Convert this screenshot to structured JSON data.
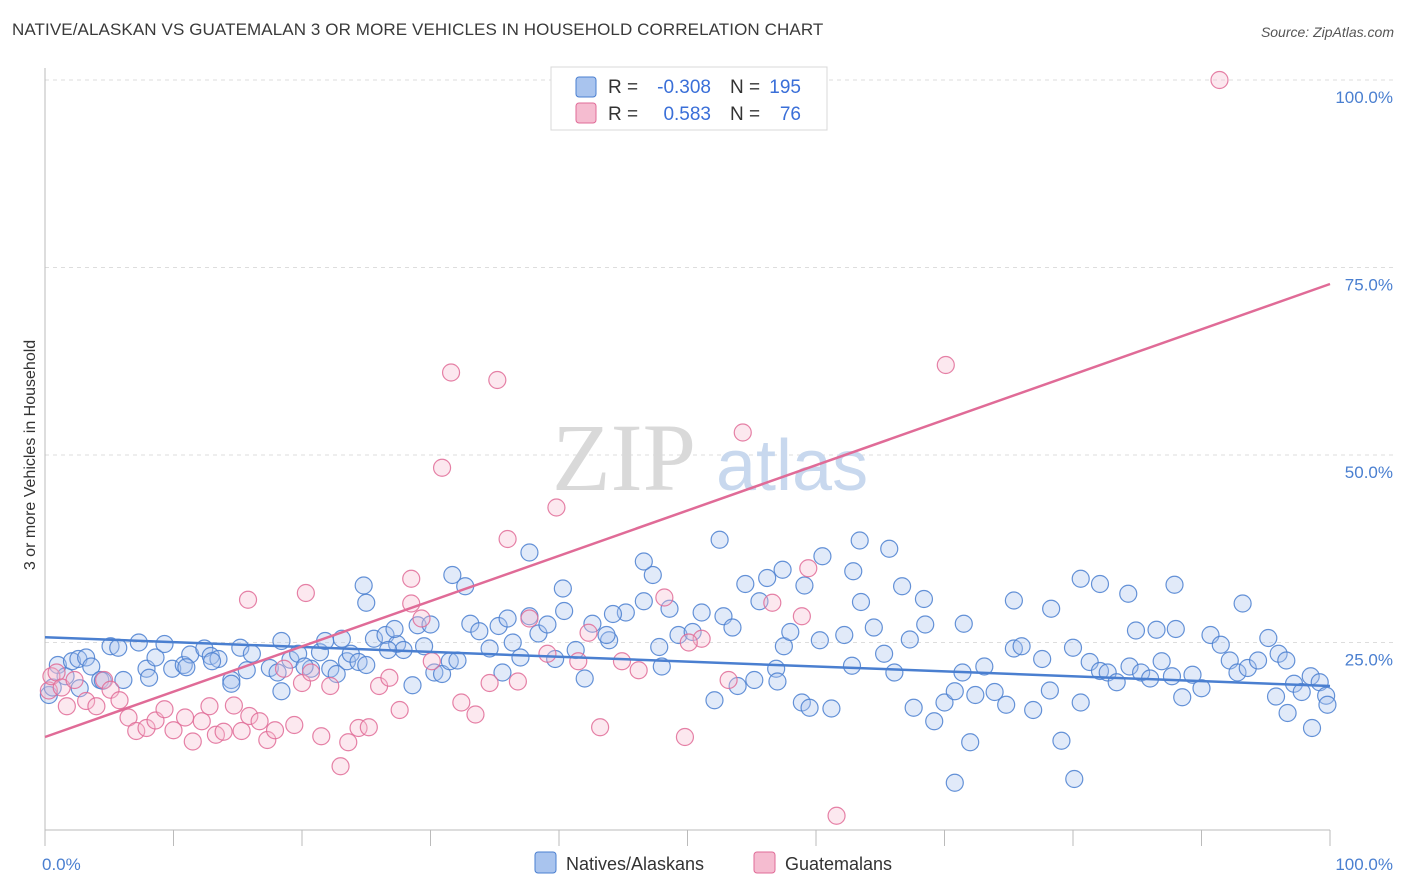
{
  "title": "NATIVE/ALASKAN VS GUATEMALAN 3 OR MORE VEHICLES IN HOUSEHOLD CORRELATION CHART",
  "source": "Source: ZipAtlas.com",
  "watermark": {
    "zip": "ZIP",
    "atlas": "atlas"
  },
  "colors": {
    "blue": "#4a7fd0",
    "blue_fill": "#a9c4ee",
    "pink": "#e06b97",
    "pink_fill": "#f5bcd0",
    "grid": "#dddddd"
  },
  "legend": {
    "rows": [
      {
        "r_label": "R =",
        "r_value": "-0.308",
        "n_label": "N =",
        "n_value": "195"
      },
      {
        "r_label": "R =",
        "r_value": "0.583",
        "n_label": "N =",
        "n_value": "76"
      }
    ],
    "bottom": [
      "Natives/Alaskans",
      "Guatemalans"
    ]
  },
  "chart_data": {
    "type": "scatter",
    "ylabel": "3 or more Vehicles in Household",
    "x_tick_labels": [
      "0.0%",
      "100.0%"
    ],
    "y_tick_labels": [
      "25.0%",
      "50.0%",
      "75.0%",
      "100.0%"
    ],
    "xlim": [
      0,
      100
    ],
    "ylim": [
      0,
      100
    ],
    "grid": true,
    "legend_position": "top-center",
    "series": [
      {
        "name": "Natives/Alaskans",
        "color": "#4a7fd0",
        "trend": {
          "x": [
            0,
            100
          ],
          "y": [
            25.7,
            19.2
          ]
        },
        "points": [
          [
            0.3,
            18
          ],
          [
            0.6,
            19
          ],
          [
            1,
            22
          ],
          [
            1.6,
            20.5
          ],
          [
            2.1,
            22.5
          ],
          [
            2.6,
            22.8
          ],
          [
            3.2,
            23
          ],
          [
            3.6,
            21.8
          ],
          [
            4.3,
            20
          ],
          [
            5.1,
            24.5
          ],
          [
            5.7,
            24.3
          ],
          [
            6.1,
            20
          ],
          [
            7.3,
            25
          ],
          [
            7.9,
            21.5
          ],
          [
            8.6,
            23
          ],
          [
            9.3,
            24.8
          ],
          [
            9.9,
            21.5
          ],
          [
            10.8,
            22
          ],
          [
            11.3,
            23.4
          ],
          [
            12.4,
            24.2
          ],
          [
            12.9,
            23.2
          ],
          [
            13.5,
            22.8
          ],
          [
            14.5,
            20
          ],
          [
            15.2,
            24.3
          ],
          [
            15.7,
            21.3
          ],
          [
            16.1,
            23.5
          ],
          [
            17.5,
            21.6
          ],
          [
            18.1,
            21
          ],
          [
            18.4,
            25.2
          ],
          [
            19.1,
            22.7
          ],
          [
            19.7,
            23.5
          ],
          [
            20.7,
            21.5
          ],
          [
            21.4,
            23.7
          ],
          [
            21.8,
            25.2
          ],
          [
            22.2,
            21.5
          ],
          [
            22.7,
            20.8
          ],
          [
            23.5,
            22.5
          ],
          [
            23.8,
            23.5
          ],
          [
            24.4,
            22.4
          ],
          [
            25,
            22
          ],
          [
            25,
            30.3
          ],
          [
            25.6,
            25.5
          ],
          [
            26.5,
            26
          ],
          [
            27.4,
            24.8
          ],
          [
            27.9,
            24
          ],
          [
            29,
            27.3
          ],
          [
            29.5,
            24.5
          ],
          [
            30.3,
            21
          ],
          [
            30.9,
            20.8
          ],
          [
            31.5,
            22.5
          ],
          [
            32.1,
            22.6
          ],
          [
            33.1,
            27.5
          ],
          [
            33.8,
            26.5
          ],
          [
            34.6,
            24.2
          ],
          [
            35.3,
            27.2
          ],
          [
            36.4,
            25
          ],
          [
            37,
            23
          ],
          [
            37.7,
            28.5
          ],
          [
            38.4,
            26.2
          ],
          [
            39.1,
            27.4
          ],
          [
            39.7,
            22.8
          ],
          [
            40.4,
            29.2
          ],
          [
            41.3,
            24
          ],
          [
            42,
            20.2
          ],
          [
            42.6,
            27.5
          ],
          [
            43.9,
            25.3
          ],
          [
            45.2,
            29
          ],
          [
            46.6,
            30.5
          ],
          [
            47.3,
            34
          ],
          [
            47.8,
            24.4
          ],
          [
            48.6,
            29.5
          ],
          [
            49.3,
            26
          ],
          [
            50.4,
            26.4
          ],
          [
            51.1,
            29
          ],
          [
            52.8,
            28.5
          ],
          [
            53.9,
            19.2
          ],
          [
            54.5,
            32.8
          ],
          [
            55.6,
            30.5
          ],
          [
            56.2,
            33.6
          ],
          [
            56.9,
            21.5
          ],
          [
            57.5,
            24.5
          ],
          [
            58,
            26.4
          ],
          [
            58.9,
            17
          ],
          [
            59.5,
            16.3
          ],
          [
            60.3,
            25.3
          ],
          [
            61.2,
            16.2
          ],
          [
            62.2,
            26
          ],
          [
            62.8,
            21.9
          ],
          [
            63.5,
            30.4
          ],
          [
            64.5,
            27
          ],
          [
            65.3,
            23.5
          ],
          [
            66.1,
            21
          ],
          [
            66.7,
            32.5
          ],
          [
            67.6,
            16.3
          ],
          [
            68.5,
            27.4
          ],
          [
            69.2,
            14.5
          ],
          [
            70,
            17
          ],
          [
            70.8,
            18.5
          ],
          [
            71.4,
            21
          ],
          [
            72,
            11.7
          ],
          [
            72.4,
            18
          ],
          [
            73.1,
            21.8
          ],
          [
            73.9,
            18.4
          ],
          [
            74.8,
            16.7
          ],
          [
            75.4,
            24.2
          ],
          [
            76,
            24.5
          ],
          [
            76.9,
            16
          ],
          [
            77.6,
            22.8
          ],
          [
            78.2,
            18.6
          ],
          [
            79.1,
            11.9
          ],
          [
            80,
            24.3
          ],
          [
            80.6,
            17
          ],
          [
            81.3,
            22.4
          ],
          [
            82.1,
            21.2
          ],
          [
            82.7,
            21
          ],
          [
            83.4,
            19.7
          ],
          [
            84.4,
            21.8
          ],
          [
            85.3,
            21
          ],
          [
            86,
            20.2
          ],
          [
            86.9,
            22.5
          ],
          [
            87.7,
            20.5
          ],
          [
            88.5,
            17.7
          ],
          [
            89.3,
            20.7
          ],
          [
            90,
            18.9
          ],
          [
            90.7,
            26
          ],
          [
            91.5,
            24.7
          ],
          [
            92.2,
            22.6
          ],
          [
            92.8,
            21
          ],
          [
            93.6,
            21.6
          ],
          [
            94.4,
            22.6
          ],
          [
            95.2,
            25.6
          ],
          [
            96,
            23.5
          ],
          [
            96.6,
            22.6
          ],
          [
            97.2,
            19.5
          ],
          [
            97.8,
            18.4
          ],
          [
            98.5,
            20.5
          ],
          [
            99.2,
            19.7
          ],
          [
            99.7,
            17.9
          ],
          [
            13,
            22.5
          ],
          [
            14.5,
            19.5
          ],
          [
            35.6,
            21
          ],
          [
            60.5,
            36.5
          ],
          [
            48,
            21.8
          ],
          [
            67.3,
            25.4
          ],
          [
            82.1,
            32.8
          ],
          [
            84.3,
            31.5
          ],
          [
            86.5,
            26.7
          ],
          [
            87.9,
            32.7
          ],
          [
            71.5,
            27.5
          ],
          [
            59.1,
            32.6
          ],
          [
            57.4,
            34.7
          ],
          [
            53.5,
            27
          ],
          [
            44.2,
            28.8
          ],
          [
            40.3,
            32.2
          ],
          [
            27.2,
            26.8
          ],
          [
            20.2,
            21.8
          ],
          [
            8.1,
            20.3
          ],
          [
            4.5,
            19.9
          ],
          [
            2.7,
            18.9
          ],
          [
            32.7,
            32.5
          ],
          [
            30,
            27.4
          ],
          [
            23.1,
            25.5
          ],
          [
            46.6,
            35.8
          ],
          [
            52.5,
            38.7
          ],
          [
            62.9,
            34.5
          ],
          [
            63.4,
            38.6
          ],
          [
            65.7,
            37.5
          ],
          [
            68.4,
            30.8
          ],
          [
            75.4,
            30.6
          ],
          [
            78.3,
            29.5
          ],
          [
            80.6,
            33.5
          ],
          [
            84.9,
            26.6
          ],
          [
            88,
            26.8
          ],
          [
            93.2,
            30.2
          ],
          [
            95.8,
            17.8
          ],
          [
            96.7,
            15.6
          ],
          [
            98.6,
            13.6
          ],
          [
            99.8,
            16.7
          ],
          [
            80.1,
            6.8
          ],
          [
            70.8,
            6.3
          ],
          [
            52.1,
            17.3
          ],
          [
            55.2,
            20
          ],
          [
            57,
            19.8
          ],
          [
            43.7,
            26
          ],
          [
            36,
            28.2
          ],
          [
            28.6,
            19.3
          ],
          [
            18.4,
            18.5
          ],
          [
            11,
            21.7
          ],
          [
            26.7,
            24
          ],
          [
            24.8,
            32.6
          ],
          [
            31.7,
            34
          ],
          [
            37.7,
            37
          ]
        ]
      },
      {
        "name": "Guatemalans",
        "color": "#e06b97",
        "trend": {
          "x": [
            0,
            100
          ],
          "y": [
            12.4,
            72.8
          ]
        },
        "points": [
          [
            0.3,
            18.6
          ],
          [
            0.5,
            20.5
          ],
          [
            0.9,
            21
          ],
          [
            1.3,
            19
          ],
          [
            1.7,
            16.5
          ],
          [
            2.3,
            20
          ],
          [
            3.2,
            17.2
          ],
          [
            4,
            16.5
          ],
          [
            4.6,
            20
          ],
          [
            5.1,
            18.7
          ],
          [
            5.8,
            17.3
          ],
          [
            6.5,
            15
          ],
          [
            7.1,
            13.2
          ],
          [
            7.9,
            13.6
          ],
          [
            8.6,
            14.6
          ],
          [
            9.3,
            16.1
          ],
          [
            10,
            13.3
          ],
          [
            10.9,
            15
          ],
          [
            11.5,
            11.8
          ],
          [
            12.2,
            14.5
          ],
          [
            12.8,
            16.5
          ],
          [
            13.3,
            12.7
          ],
          [
            13.9,
            13.1
          ],
          [
            14.7,
            16.6
          ],
          [
            15.3,
            13.2
          ],
          [
            15.9,
            15.2
          ],
          [
            16.7,
            14.5
          ],
          [
            17.3,
            12
          ],
          [
            17.9,
            13.3
          ],
          [
            18.6,
            21.5
          ],
          [
            19.4,
            14
          ],
          [
            20,
            19.6
          ],
          [
            20.7,
            21
          ],
          [
            21.5,
            12.5
          ],
          [
            22.2,
            19.2
          ],
          [
            23,
            8.5
          ],
          [
            23.6,
            11.7
          ],
          [
            24.4,
            13.6
          ],
          [
            25.2,
            13.7
          ],
          [
            26,
            19.2
          ],
          [
            26.8,
            20.3
          ],
          [
            27.6,
            16
          ],
          [
            28.5,
            33.5
          ],
          [
            29.3,
            28.2
          ],
          [
            30.1,
            22.5
          ],
          [
            30.9,
            48.3
          ],
          [
            31.6,
            61
          ],
          [
            32.4,
            17
          ],
          [
            33.5,
            15.4
          ],
          [
            34.6,
            19.6
          ],
          [
            35.2,
            60
          ],
          [
            36,
            38.8
          ],
          [
            36.8,
            19.8
          ],
          [
            37.7,
            28.2
          ],
          [
            39.1,
            23.5
          ],
          [
            39.8,
            43
          ],
          [
            41.5,
            22.5
          ],
          [
            42.3,
            26.3
          ],
          [
            43.2,
            13.7
          ],
          [
            44.9,
            22.5
          ],
          [
            46.2,
            21.3
          ],
          [
            48.2,
            31
          ],
          [
            49.8,
            12.4
          ],
          [
            51.1,
            25.5
          ],
          [
            53.2,
            20
          ],
          [
            54.3,
            53
          ],
          [
            56.6,
            30.3
          ],
          [
            58.9,
            28.5
          ],
          [
            59.4,
            34.9
          ],
          [
            61.6,
            1.9
          ],
          [
            70.1,
            62
          ],
          [
            91.4,
            100
          ],
          [
            15.8,
            30.7
          ],
          [
            20.3,
            31.6
          ],
          [
            28.5,
            30.2
          ],
          [
            50.1,
            25
          ]
        ]
      }
    ]
  }
}
